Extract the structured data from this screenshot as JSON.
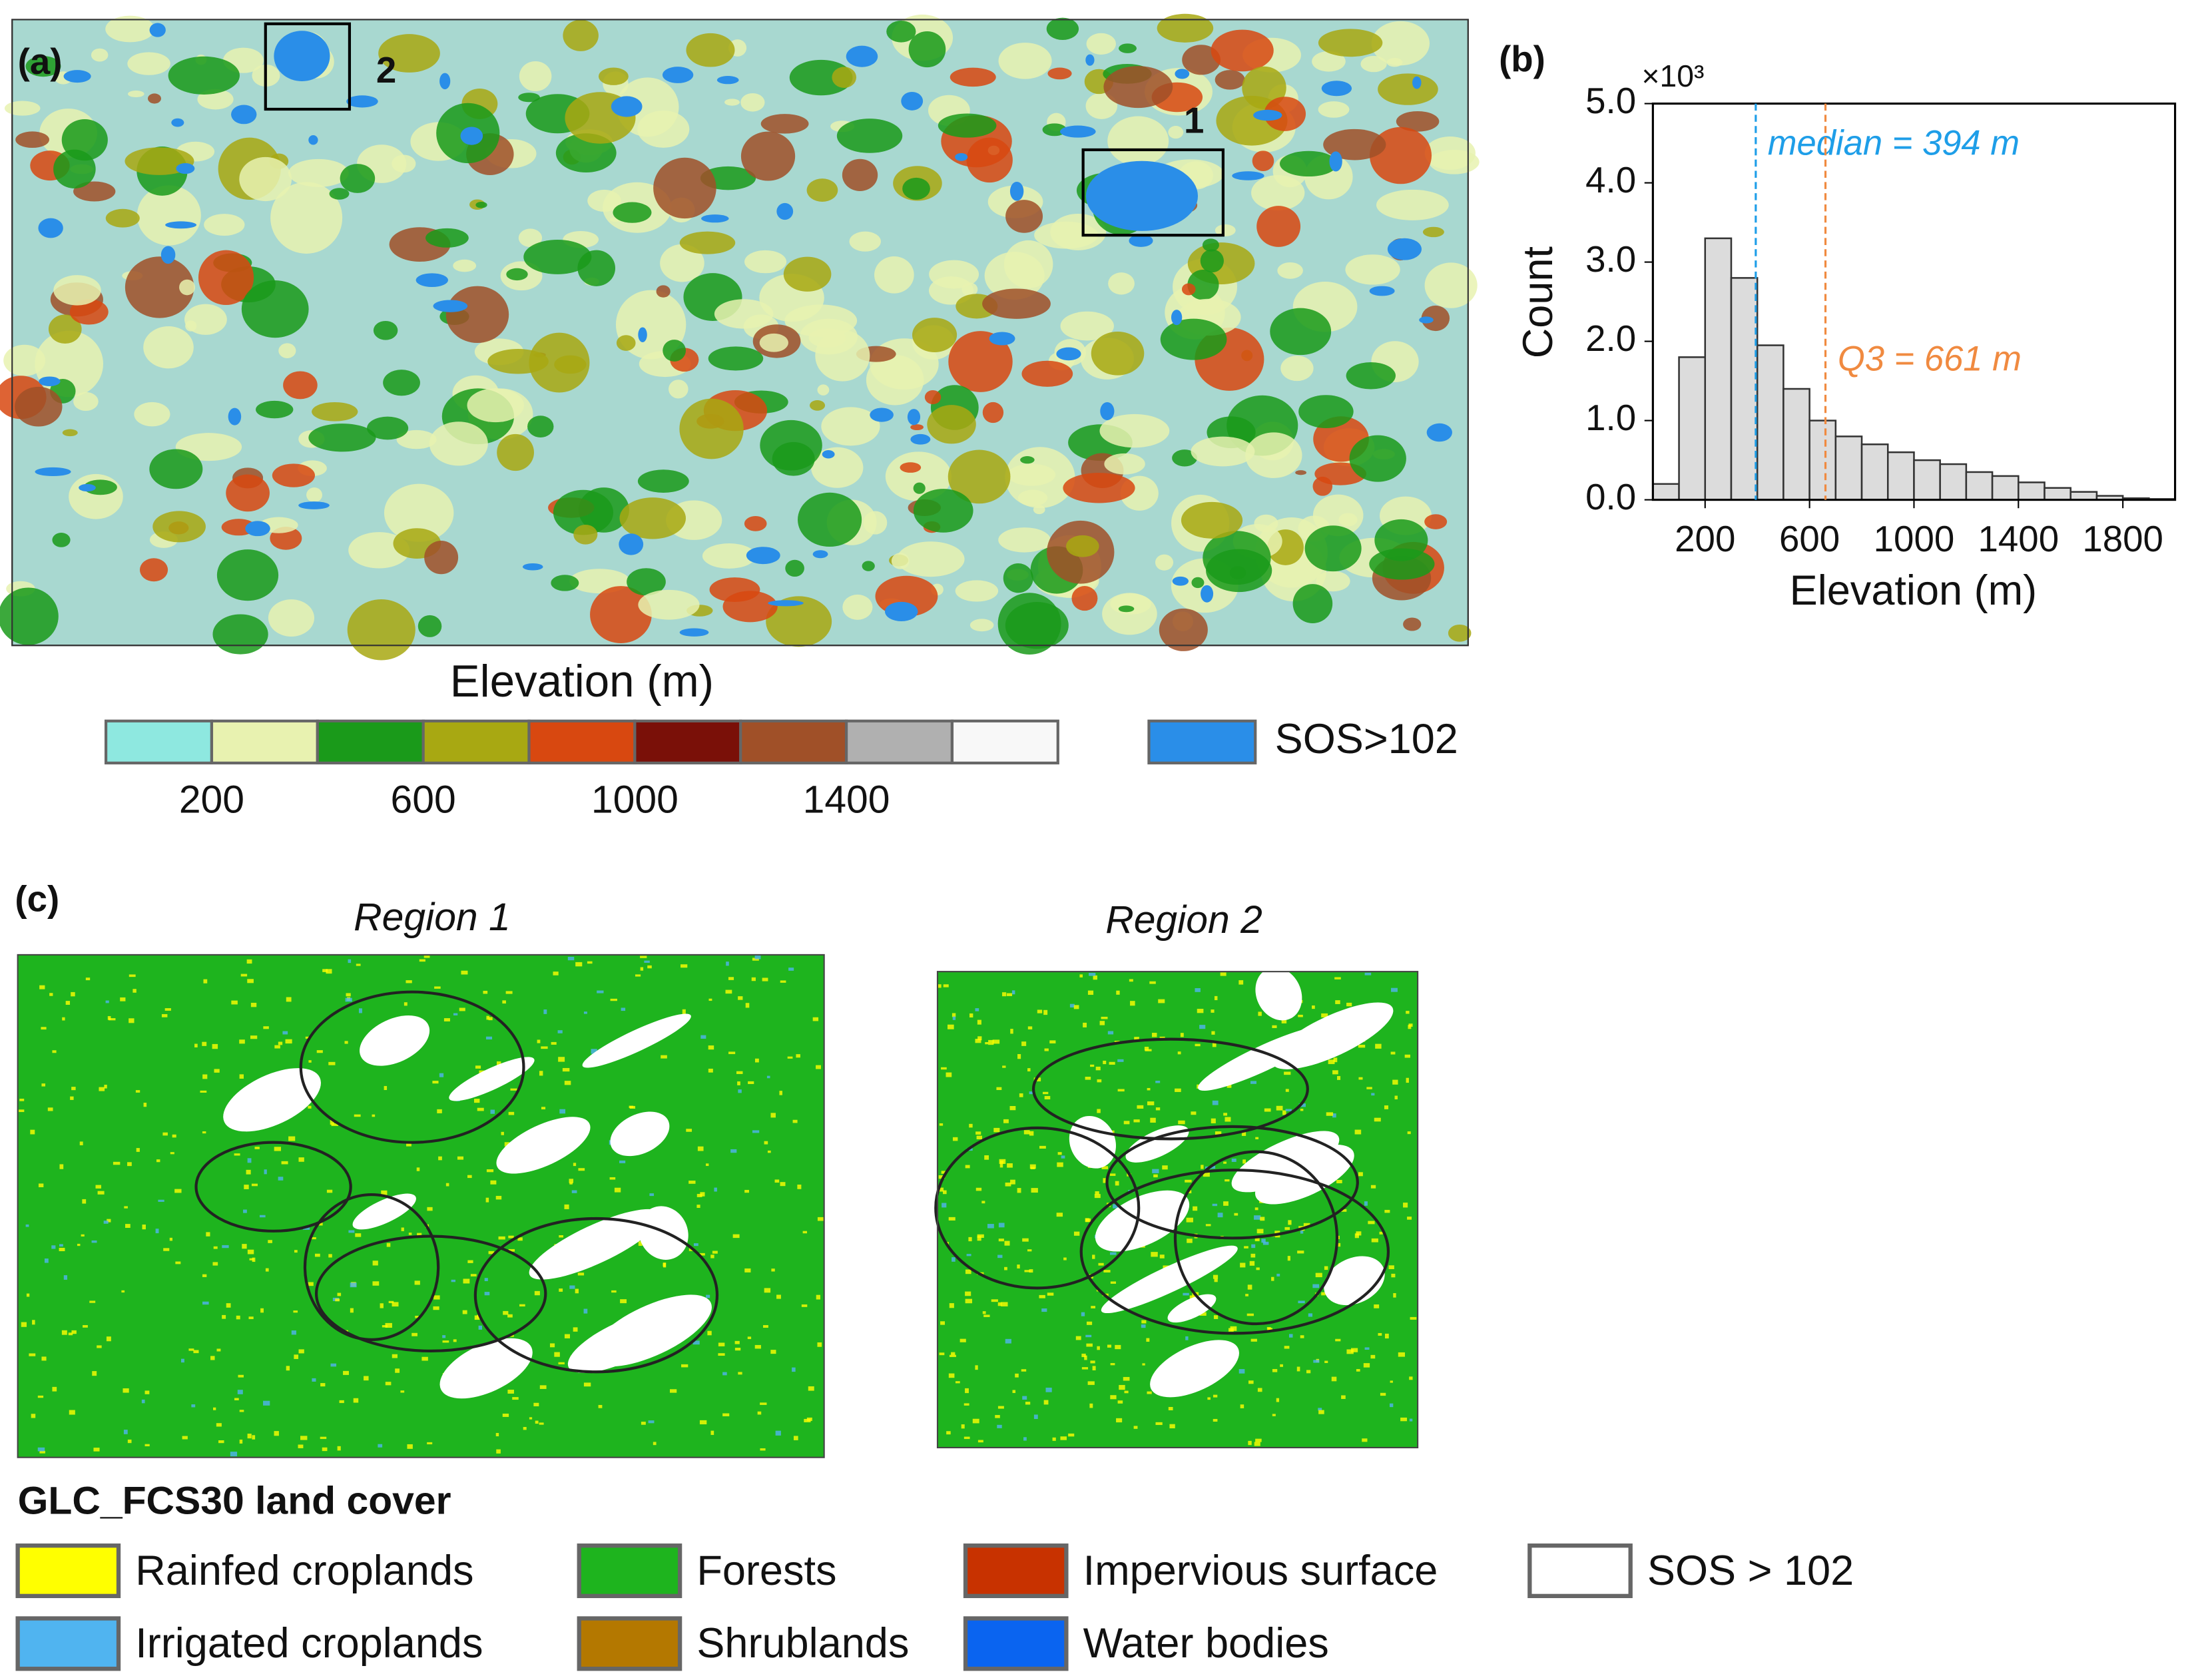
{
  "panel_a": {
    "label": "(a)",
    "region_labels": [
      "1",
      "2"
    ],
    "colorbar": {
      "title": "Elevation (m)",
      "bounds": [
        0,
        200,
        400,
        600,
        800,
        1000,
        1200,
        1400,
        1600,
        1800
      ],
      "colors": [
        "#8ee8e0",
        "#e8f2b0",
        "#1a9a1a",
        "#a8a812",
        "#d84810",
        "#7a1008",
        "#a05028",
        "#b0b0b0",
        "#f8f8f8"
      ],
      "ticks": [
        200,
        600,
        1000,
        1400
      ]
    },
    "sos_legend": {
      "label": "SOS>102",
      "color": "#2a8ee8"
    }
  },
  "chart_data": {
    "type": "histogram",
    "label": "(b)",
    "multiplier": "×10³",
    "ylabel": "Count",
    "xlabel": "Elevation (m)",
    "bins": [
      0,
      100,
      200,
      300,
      400,
      500,
      600,
      700,
      800,
      900,
      1000,
      1100,
      1200,
      1300,
      1400,
      1500,
      1600,
      1700,
      1800,
      1900,
      2000
    ],
    "values": [
      0.2,
      1.8,
      3.3,
      2.8,
      1.95,
      1.4,
      1.0,
      0.8,
      0.7,
      0.6,
      0.5,
      0.45,
      0.35,
      0.3,
      0.22,
      0.15,
      0.1,
      0.05,
      0.02,
      0.01
    ],
    "color": "#dcdcdc",
    "xlim": [
      0,
      2000
    ],
    "ylim": [
      0,
      5.0
    ],
    "xticks": [
      200,
      600,
      1000,
      1400,
      1800
    ],
    "yticks": [
      {
        "value": 0,
        "label": "0.0"
      },
      {
        "value": 1,
        "label": "1.0"
      },
      {
        "value": 2,
        "label": "2.0"
      },
      {
        "value": 3,
        "label": "3.0"
      },
      {
        "value": 4,
        "label": "4.0"
      },
      {
        "value": 5,
        "label": "5.0"
      }
    ],
    "lines": [
      {
        "value": 394,
        "text": "median = 394 m",
        "color": "#1e9ee8"
      },
      {
        "value": 661,
        "text": "Q3 = 661 m",
        "color": "#f08a40"
      }
    ]
  },
  "panel_c": {
    "label": "(c)",
    "regions": [
      "Region 1",
      "Region 2"
    ],
    "legend_title": "GLC_FCS30 land cover",
    "legend": [
      {
        "label": "Rainfed croplands",
        "color": "#ffff00"
      },
      {
        "label": "Irrigated  croplands",
        "color": "#50b4f0"
      },
      {
        "label": "Forests",
        "color": "#1eb41e"
      },
      {
        "label": "Shrublands",
        "color": "#b47800"
      },
      {
        "label": "Impervious surface",
        "color": "#c83200"
      },
      {
        "label": "Water bodies",
        "color": "#0a64f0"
      },
      {
        "label": "SOS > 102",
        "color": "#ffffff"
      }
    ]
  }
}
